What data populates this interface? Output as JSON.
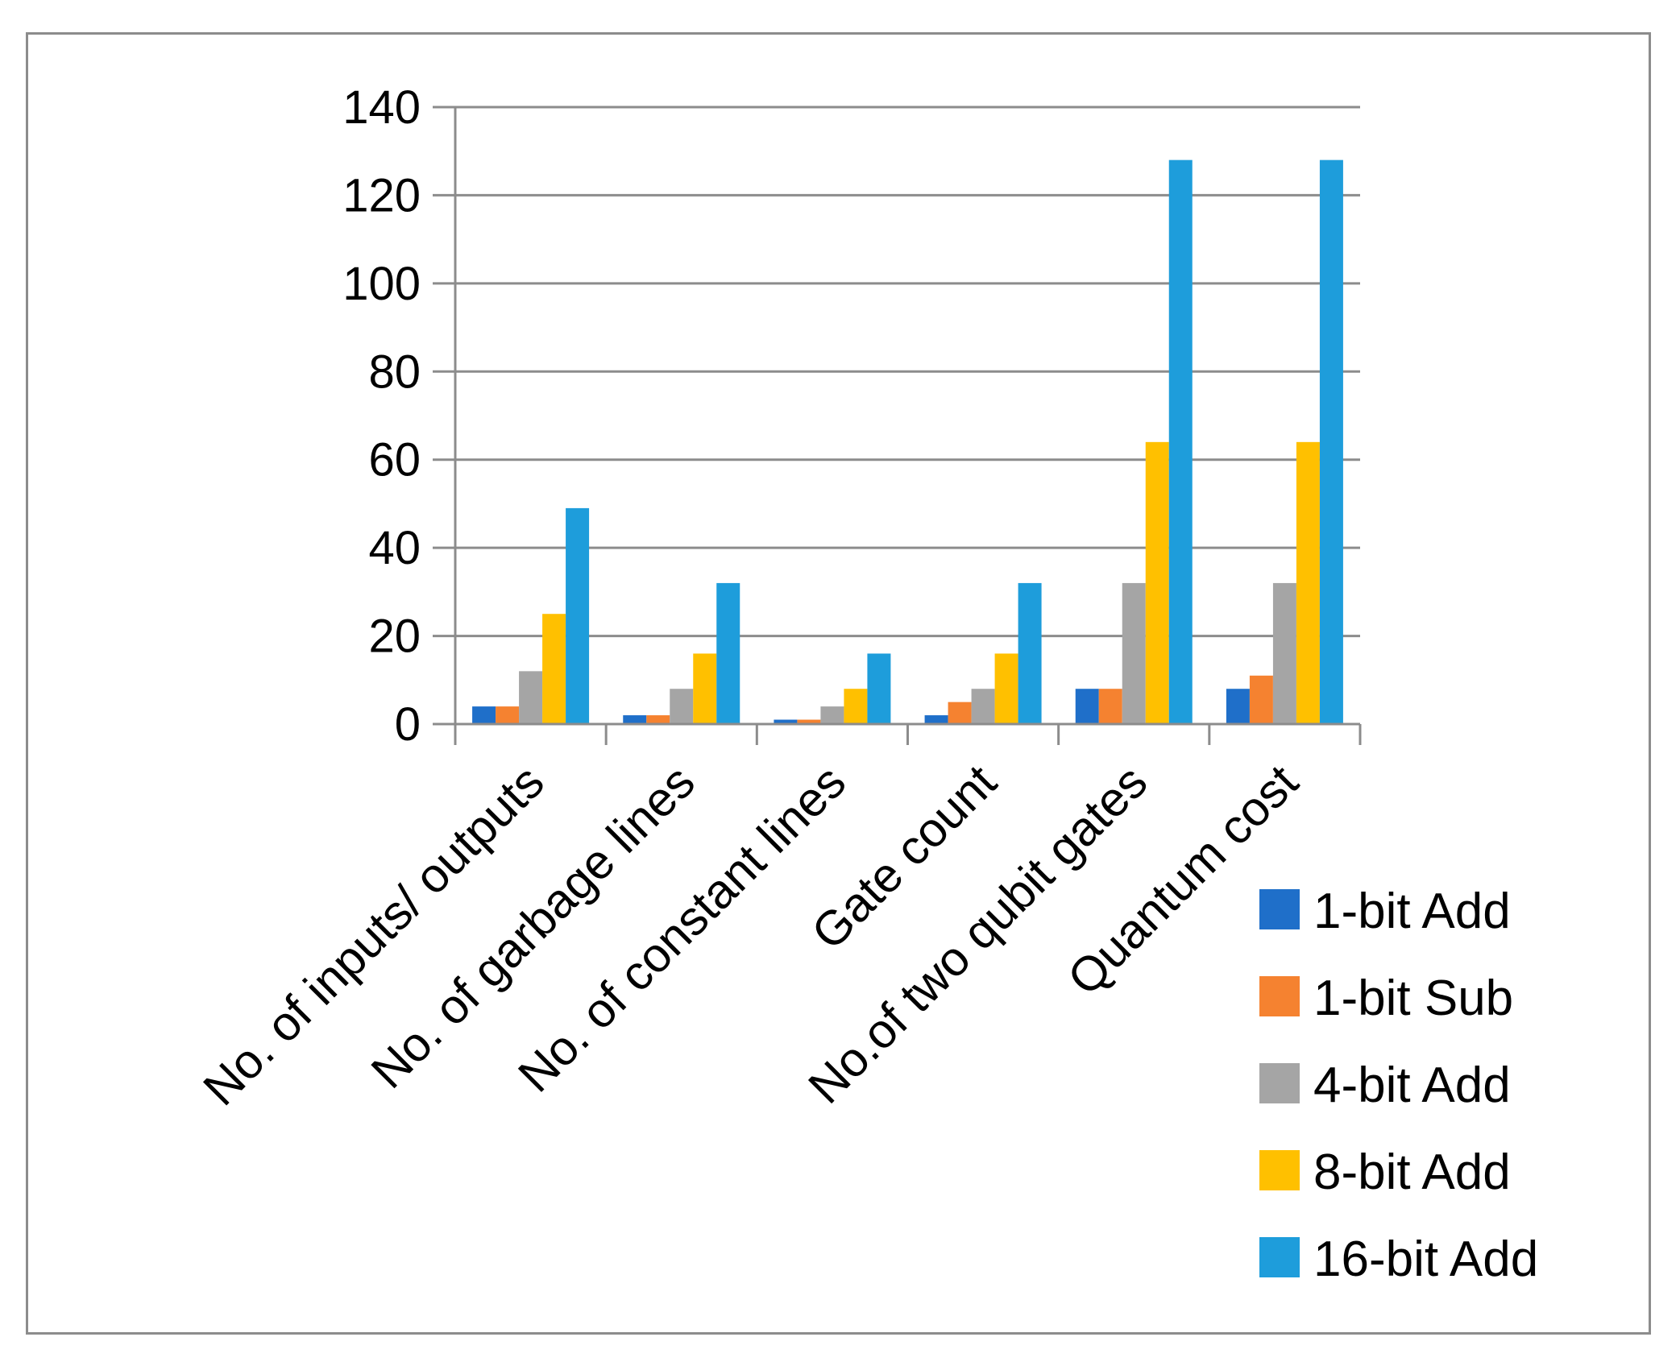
{
  "chart_data": {
    "type": "bar",
    "title": "",
    "xlabel": "",
    "ylabel": "",
    "ylim": [
      0,
      140
    ],
    "yticks": [
      0,
      20,
      40,
      60,
      80,
      100,
      120,
      140
    ],
    "grid": true,
    "legend_position": "bottom-right",
    "categories": [
      "No. of inputs/ outputs",
      "No. of garbage lines",
      "No. of constant lines",
      "Gate count",
      "No.of two qubit gates",
      "Quantum cost"
    ],
    "series": [
      {
        "name": "1-bit Add",
        "color": "#1f6fc9",
        "values": [
          4,
          2,
          1,
          2,
          8,
          8
        ]
      },
      {
        "name": "1-bit Sub",
        "color": "#f58230",
        "values": [
          4,
          2,
          1,
          5,
          8,
          11
        ]
      },
      {
        "name": "4-bit Add",
        "color": "#a5a5a5",
        "values": [
          12,
          8,
          4,
          8,
          32,
          32
        ]
      },
      {
        "name": "8-bit Add",
        "color": "#ffc000",
        "values": [
          25,
          16,
          8,
          16,
          64,
          64
        ]
      },
      {
        "name": "16-bit Add",
        "color": "#1e9ddb",
        "values": [
          49,
          32,
          16,
          32,
          128,
          128
        ]
      }
    ]
  }
}
